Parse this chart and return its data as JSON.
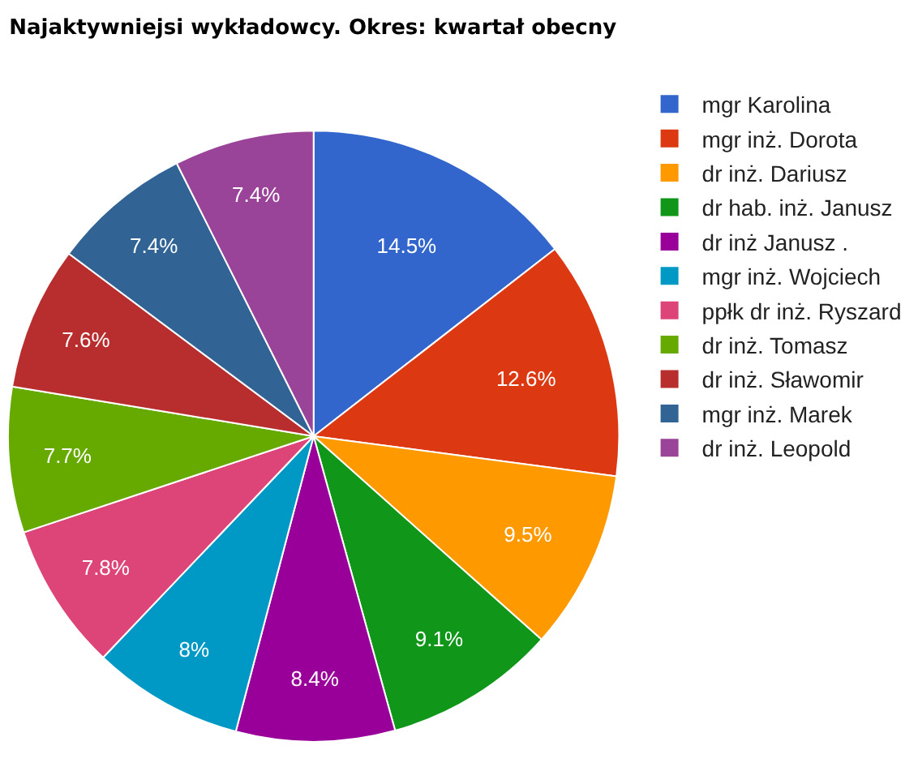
{
  "chart_data": {
    "type": "pie",
    "title": "Najaktywniejsi wykładowcy. Okres: kwartał obecny",
    "categories": [
      "mgr Karolina",
      "mgr inż. Dorota",
      "dr inż. Dariusz",
      "dr hab. inż. Janusz",
      "dr inż Janusz .",
      "mgr inż. Wojciech",
      "ppłk dr inż. Ryszard",
      "dr inż. Tomasz",
      "dr inż. Sławomir",
      "mgr inż. Marek",
      "dr inż. Leopold"
    ],
    "values": [
      14.5,
      12.6,
      9.5,
      9.1,
      8.4,
      8,
      7.8,
      7.7,
      7.6,
      7.4,
      7.4
    ],
    "value_labels": [
      "14.5%",
      "12.6%",
      "9.5%",
      "9.1%",
      "8.4%",
      "8%",
      "7.8%",
      "7.7%",
      "7.6%",
      "7.4%",
      "7.4%"
    ],
    "colors": [
      "#3366cc",
      "#dc3912",
      "#ff9900",
      "#109618",
      "#990099",
      "#0099c6",
      "#dd4477",
      "#66aa00",
      "#b82e2e",
      "#316395",
      "#994499"
    ],
    "legend": "right"
  }
}
